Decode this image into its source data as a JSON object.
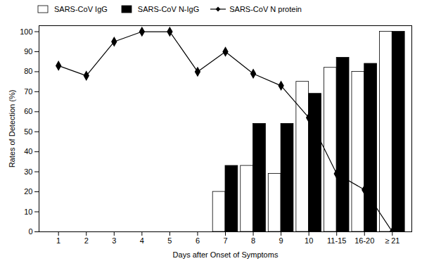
{
  "chart_data": {
    "type": "bar",
    "categories": [
      "1",
      "2",
      "3",
      "4",
      "5",
      "6",
      "7",
      "8",
      "9",
      "10",
      "11-15",
      "16-20",
      "≥ 21"
    ],
    "series": [
      {
        "name": "SARS-CoV IgG",
        "type": "bar",
        "color": "white",
        "values": [
          null,
          null,
          null,
          null,
          null,
          null,
          20,
          33,
          29,
          75,
          82,
          80,
          100
        ]
      },
      {
        "name": "SARS-CoV N-IgG",
        "type": "bar",
        "color": "black",
        "values": [
          null,
          null,
          null,
          null,
          null,
          null,
          33,
          54,
          54,
          69,
          87,
          84,
          100
        ]
      },
      {
        "name": "SARS-CoV N protein",
        "type": "line",
        "color": "black",
        "marker": "diamond",
        "values": [
          83,
          78,
          95,
          100,
          100,
          80,
          90,
          79,
          73,
          57,
          29,
          21,
          0
        ]
      }
    ],
    "xlabel": "Days after Onset of Symptoms",
    "ylabel": "Rates of Detection (%)",
    "ylim": [
      0,
      103
    ],
    "yticks": [
      0,
      10,
      20,
      30,
      40,
      50,
      60,
      70,
      80,
      90,
      100
    ],
    "grid": false,
    "legend": "upper left"
  }
}
